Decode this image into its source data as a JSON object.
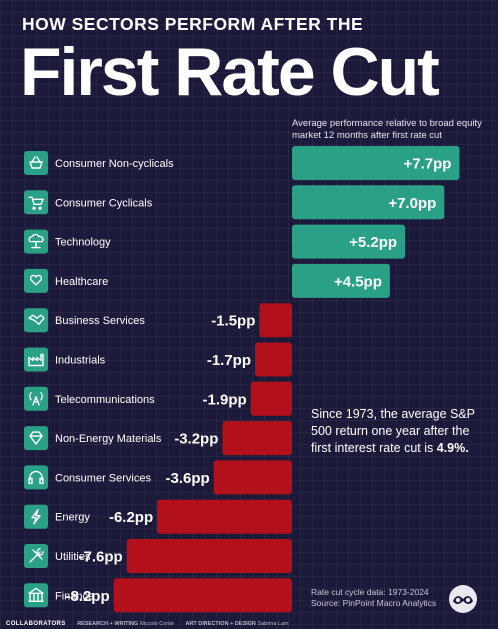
{
  "header": {
    "kicker": "HOW SECTORS PERFORM AFTER THE",
    "headline": "First Rate Cut",
    "subtitle": "Average performance relative to broad equity market 12 months after first rate cut"
  },
  "chart_data": {
    "type": "bar",
    "orientation": "horizontal",
    "title": "First Rate Cut",
    "subtitle": "Average performance relative to broad equity market 12 months after first rate cut",
    "unit": "pp",
    "categories": [
      "Consumer Non-cyclicals",
      "Consumer Cyclicals",
      "Technology",
      "Healthcare",
      "Business Services",
      "Industrials",
      "Telecommunications",
      "Non-Energy Materials",
      "Consumer Services",
      "Energy",
      "Utilities",
      "Finance"
    ],
    "values": [
      7.7,
      7.0,
      5.2,
      4.5,
      -1.5,
      -1.7,
      -1.9,
      -3.2,
      -3.6,
      -6.2,
      -7.6,
      -8.2
    ],
    "value_labels": [
      "+7.7pp",
      "+7.0pp",
      "+5.2pp",
      "+4.5pp",
      "-1.5pp",
      "-1.7pp",
      "-1.9pp",
      "-3.2pp",
      "-3.6pp",
      "-6.2pp",
      "-7.6pp",
      "-8.2pp"
    ],
    "icons": [
      "basket-icon",
      "cart-icon",
      "cloud-network-icon",
      "heart-hand-icon",
      "handshake-icon",
      "factory-icon",
      "broadcast-tower-icon",
      "gem-icon",
      "headset-icon",
      "lightning-icon",
      "tools-icon",
      "bank-icon"
    ],
    "colors": {
      "positive": "#2aa087",
      "negative": "#b2101a",
      "icon_bg": "#2aa087"
    },
    "grid": true,
    "legend": "none"
  },
  "note": {
    "text": "Since 1973, the average S&P 500 return one year after the first interest rate cut is",
    "highlight": "4.9%."
  },
  "source": {
    "line1": "Rate cut cycle data: 1973-2024",
    "line2": "Source: PinPoint Macro Analytics"
  },
  "footer": {
    "brand": "COLLABORATORS",
    "research_label": "RESEARCH + WRITING",
    "research_name": "Niccolo Conte",
    "art_label": "ART DIRECTION + DESIGN",
    "art_name": "Sabrina Lam"
  }
}
